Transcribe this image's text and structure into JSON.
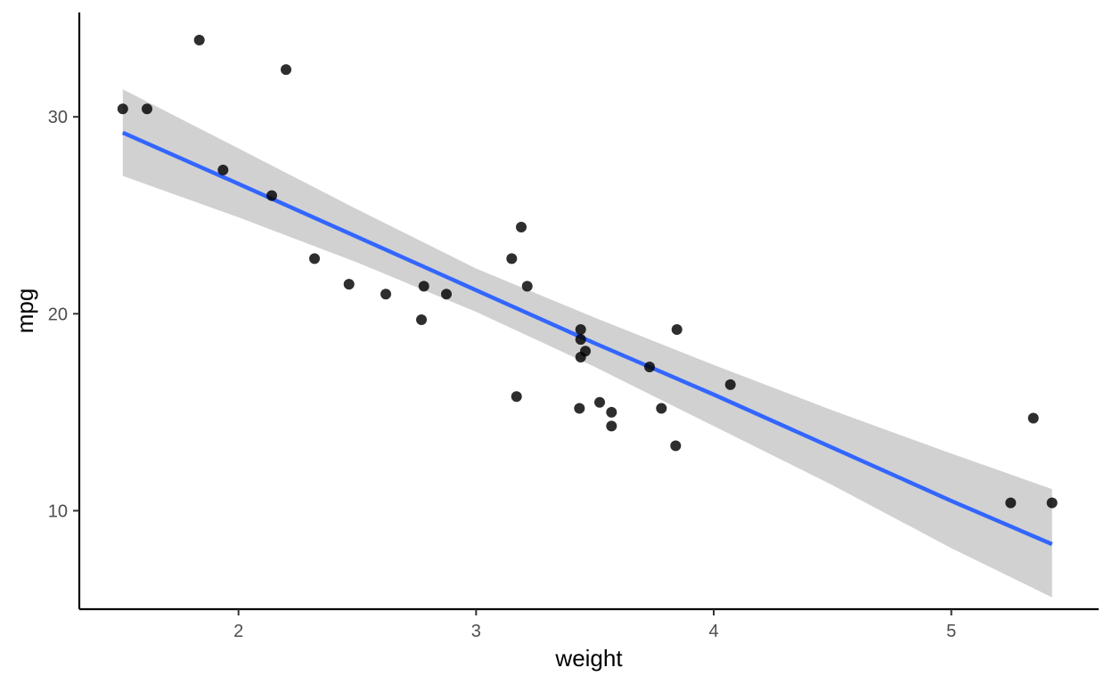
{
  "chart_data": {
    "type": "scatter",
    "title": "",
    "xlabel": "weight",
    "ylabel": "mpg",
    "xlim": [
      1.33,
      5.62
    ],
    "ylim": [
      5.0,
      35.3
    ],
    "x_ticks": [
      2,
      3,
      4,
      5
    ],
    "y_ticks": [
      10,
      20,
      30
    ],
    "grid": false,
    "legend": "none",
    "colors": {
      "points": "#000000",
      "fit_line": "#3366FF",
      "confidence_band": "#BFBFBF"
    },
    "points": [
      {
        "x": 2.62,
        "y": 21.0
      },
      {
        "x": 2.875,
        "y": 21.0
      },
      {
        "x": 2.32,
        "y": 22.8
      },
      {
        "x": 3.215,
        "y": 21.4
      },
      {
        "x": 3.44,
        "y": 18.7
      },
      {
        "x": 3.46,
        "y": 18.1
      },
      {
        "x": 3.57,
        "y": 14.3
      },
      {
        "x": 3.19,
        "y": 24.4
      },
      {
        "x": 3.15,
        "y": 22.8
      },
      {
        "x": 3.44,
        "y": 19.2
      },
      {
        "x": 3.44,
        "y": 17.8
      },
      {
        "x": 4.07,
        "y": 16.4
      },
      {
        "x": 3.73,
        "y": 17.3
      },
      {
        "x": 3.78,
        "y": 15.2
      },
      {
        "x": 5.25,
        "y": 10.4
      },
      {
        "x": 5.424,
        "y": 10.4
      },
      {
        "x": 5.345,
        "y": 14.7
      },
      {
        "x": 2.2,
        "y": 32.4
      },
      {
        "x": 1.615,
        "y": 30.4
      },
      {
        "x": 1.835,
        "y": 33.9
      },
      {
        "x": 2.465,
        "y": 21.5
      },
      {
        "x": 3.52,
        "y": 15.5
      },
      {
        "x": 3.435,
        "y": 15.2
      },
      {
        "x": 3.84,
        "y": 13.3
      },
      {
        "x": 3.845,
        "y": 19.2
      },
      {
        "x": 1.935,
        "y": 27.3
      },
      {
        "x": 2.14,
        "y": 26.0
      },
      {
        "x": 1.513,
        "y": 30.4
      },
      {
        "x": 3.17,
        "y": 15.8
      },
      {
        "x": 2.77,
        "y": 19.7
      },
      {
        "x": 3.57,
        "y": 15.0
      },
      {
        "x": 2.78,
        "y": 21.4
      }
    ],
    "fit": {
      "x": [
        1.513,
        2.0,
        2.5,
        3.0,
        3.5,
        4.0,
        4.5,
        5.0,
        5.424
      ],
      "y": [
        29.2,
        26.6,
        23.9,
        21.2,
        18.5,
        15.9,
        13.2,
        10.5,
        8.3
      ],
      "lower": [
        27.0,
        24.9,
        22.6,
        20.1,
        17.3,
        14.3,
        11.3,
        8.1,
        5.6
      ],
      "upper": [
        31.4,
        28.4,
        25.3,
        22.3,
        19.8,
        17.4,
        15.1,
        12.9,
        11.1
      ]
    }
  }
}
